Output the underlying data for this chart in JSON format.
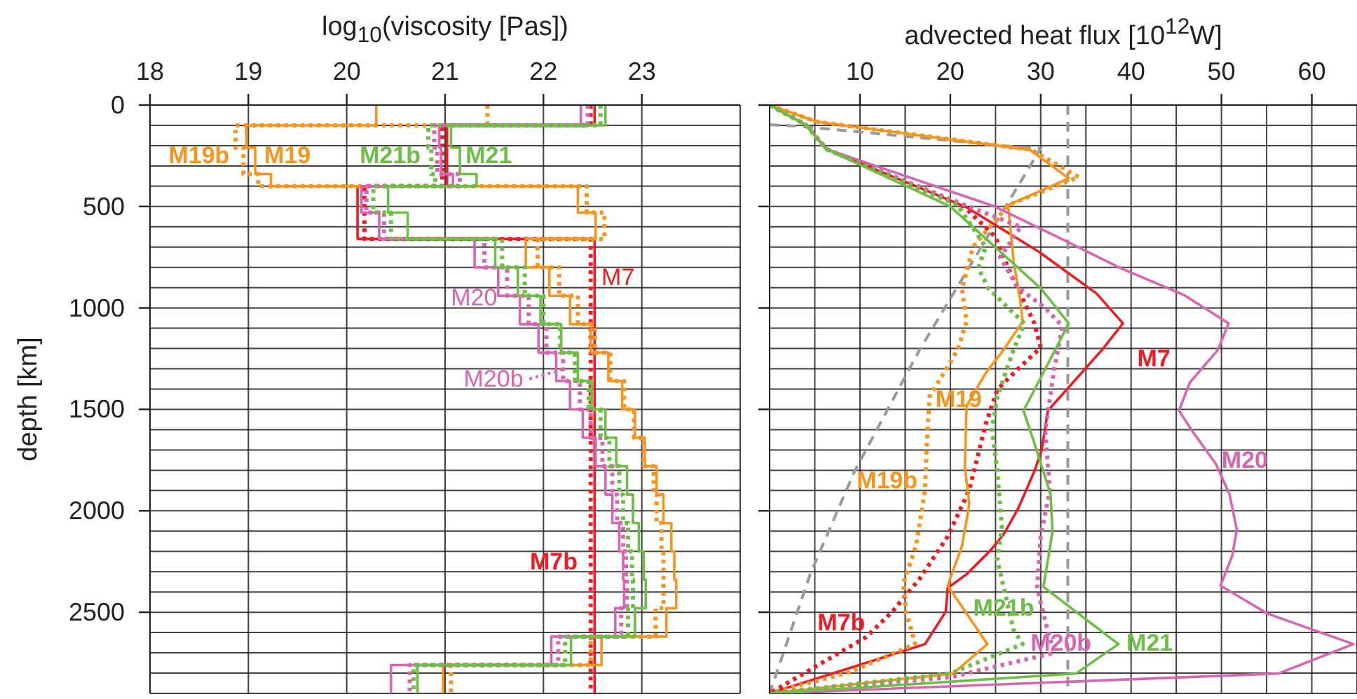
{
  "chart_data": [
    {
      "type": "line",
      "xlabel": "log$_{10}$(viscosity [Pas])",
      "ylabel": "depth [km]",
      "xlim": [
        18,
        24
      ],
      "xticks": [
        18,
        19,
        20,
        21,
        22,
        23,
        {
          "value": 24,
          "label": null
        }
      ],
      "ylim": [
        2900,
        0
      ],
      "yticks": [
        0,
        {
          "value": 100,
          "label": null
        },
        {
          "value": 200,
          "label": null
        },
        {
          "value": 300,
          "label": null
        },
        {
          "value": 400,
          "label": null
        },
        500,
        {
          "value": 600,
          "label": null
        },
        {
          "value": 700,
          "label": null
        },
        {
          "value": 800,
          "label": null
        },
        {
          "value": 900,
          "label": null
        },
        1000,
        {
          "value": 1100,
          "label": null
        },
        {
          "value": 1200,
          "label": null
        },
        {
          "value": 1300,
          "label": null
        },
        {
          "value": 1400,
          "label": null
        },
        1500,
        {
          "value": 1600,
          "label": null
        },
        {
          "value": 1700,
          "label": null
        },
        {
          "value": 1800,
          "label": null
        },
        {
          "value": 1900,
          "label": null
        },
        2000,
        {
          "value": 2100,
          "label": null
        },
        {
          "value": 2200,
          "label": null
        },
        {
          "value": 2300,
          "label": null
        },
        {
          "value": 2400,
          "label": null
        },
        2500,
        {
          "value": 2600,
          "label": null
        },
        {
          "value": 2700,
          "label": null
        },
        {
          "value": 2800,
          "label": null
        },
        {
          "value": 2900,
          "label": null
        }
      ],
      "grid": true,
      "series": [
        {
          "name": "M7",
          "color": "#ed1c24",
          "x": [
            22.52,
            22.52,
            21.02,
            21.02,
            20.11,
            20.11,
            22.52,
            22.52
          ],
          "values": [
            0,
            100,
            100,
            400,
            400,
            660,
            660,
            2900
          ]
        },
        {
          "name": "M7b",
          "color": "#ed1c24",
          "line_style": "dotted",
          "x": [
            22.48,
            22.48,
            20.97,
            20.97,
            20.18,
            20.18,
            22.48,
            22.48
          ],
          "values": [
            0,
            100,
            100,
            400,
            400,
            660,
            660,
            2900
          ]
        },
        {
          "name": "M19",
          "color": "#f7941d",
          "x": [
            20.3,
            20.3,
            18.98,
            18.98,
            19.07,
            19.07,
            19.23,
            19.23,
            22.35,
            22.35,
            22.53,
            22.53,
            21.82,
            21.82,
            22.06,
            22.06,
            22.27,
            22.27,
            22.48,
            22.48,
            22.66,
            22.66,
            22.8,
            22.8,
            22.93,
            22.93,
            23.03,
            23.03,
            23.15,
            23.15,
            23.22,
            23.22,
            23.3,
            23.3,
            23.33,
            23.33,
            23.35,
            23.35,
            23.25,
            23.25,
            22.59,
            22.59,
            20.98,
            20.98
          ],
          "values": [
            0,
            100,
            100,
            210,
            210,
            340,
            340,
            400,
            400,
            530,
            530,
            660,
            660,
            800,
            800,
            940,
            940,
            1080,
            1080,
            1220,
            1220,
            1360,
            1360,
            1500,
            1500,
            1640,
            1640,
            1780,
            1780,
            1920,
            1920,
            2060,
            2060,
            2200,
            2200,
            2340,
            2340,
            2480,
            2480,
            2620,
            2620,
            2760,
            2760,
            2900
          ]
        },
        {
          "name": "M19b",
          "color": "#f7941d",
          "line_style": "dotted",
          "x": [
            21.43,
            21.43,
            18.87,
            18.87,
            18.95,
            18.95,
            19.1,
            19.1,
            22.44,
            22.44,
            22.62,
            22.62,
            21.94,
            21.94,
            22.16,
            22.16,
            22.35,
            22.35,
            22.52,
            22.52,
            22.68,
            22.68,
            22.82,
            22.82,
            22.92,
            22.92,
            23.02,
            23.02,
            23.12,
            23.12,
            23.15,
            23.15,
            23.2,
            23.2,
            23.22,
            23.22,
            23.22,
            23.22,
            23.14,
            23.14,
            22.48,
            22.48,
            21.06,
            21.06
          ],
          "values": [
            0,
            100,
            100,
            210,
            210,
            340,
            340,
            400,
            400,
            530,
            530,
            660,
            660,
            800,
            800,
            940,
            940,
            1080,
            1080,
            1220,
            1220,
            1360,
            1360,
            1500,
            1500,
            1640,
            1640,
            1780,
            1780,
            1920,
            1920,
            2060,
            2060,
            2200,
            2200,
            2340,
            2340,
            2480,
            2480,
            2620,
            2620,
            2760,
            2760,
            2900
          ]
        },
        {
          "name": "M20",
          "color": "#d765b3",
          "x": [
            22.38,
            22.38,
            20.94,
            20.94,
            20.96,
            20.96,
            21.08,
            21.08,
            20.15,
            20.15,
            20.33,
            20.33,
            21.3,
            21.3,
            21.54,
            21.54,
            21.76,
            21.76,
            21.95,
            21.95,
            22.13,
            22.13,
            22.27,
            22.27,
            22.4,
            22.4,
            22.53,
            22.53,
            22.63,
            22.63,
            22.7,
            22.7,
            22.77,
            22.77,
            22.81,
            22.81,
            22.82,
            22.82,
            22.73,
            22.73,
            22.08,
            22.08,
            20.45,
            20.45
          ],
          "values": [
            0,
            100,
            100,
            210,
            210,
            340,
            340,
            400,
            400,
            530,
            530,
            660,
            660,
            800,
            800,
            940,
            940,
            1080,
            1080,
            1220,
            1220,
            1360,
            1360,
            1500,
            1500,
            1640,
            1640,
            1780,
            1780,
            1920,
            1920,
            2060,
            2060,
            2200,
            2200,
            2340,
            2340,
            2480,
            2480,
            2620,
            2620,
            2760,
            2760,
            2900
          ]
        },
        {
          "name": "M20b",
          "color": "#d765b3",
          "line_style": "dotted",
          "x": [
            22.45,
            22.45,
            20.89,
            20.89,
            20.92,
            20.92,
            21.15,
            21.15,
            20.2,
            20.2,
            20.38,
            20.38,
            21.4,
            21.4,
            21.63,
            21.63,
            21.85,
            21.85,
            22.03,
            22.03,
            22.2,
            22.2,
            22.37,
            22.37,
            22.48,
            22.48,
            22.6,
            22.6,
            22.7,
            22.7,
            22.75,
            22.75,
            22.81,
            22.81,
            22.84,
            22.84,
            22.85,
            22.85,
            22.79,
            22.79,
            22.15,
            22.15,
            20.64,
            20.64
          ],
          "values": [
            0,
            100,
            100,
            210,
            210,
            340,
            340,
            400,
            400,
            530,
            530,
            660,
            660,
            800,
            800,
            940,
            940,
            1080,
            1080,
            1220,
            1220,
            1360,
            1360,
            1500,
            1500,
            1640,
            1640,
            1780,
            1780,
            1920,
            1920,
            2060,
            2060,
            2200,
            2200,
            2340,
            2340,
            2480,
            2480,
            2620,
            2620,
            2760,
            2760,
            2900
          ]
        },
        {
          "name": "M21",
          "color": "#6cbe45",
          "x": [
            22.63,
            22.63,
            21.06,
            21.06,
            21.15,
            21.15,
            21.32,
            21.32,
            20.42,
            20.42,
            20.62,
            20.62,
            21.51,
            21.51,
            21.74,
            21.74,
            21.97,
            21.97,
            22.18,
            22.18,
            22.35,
            22.35,
            22.49,
            22.49,
            22.63,
            22.63,
            22.74,
            22.74,
            22.85,
            22.85,
            22.91,
            22.91,
            22.97,
            22.97,
            23.02,
            23.02,
            23.04,
            23.04,
            22.93,
            22.93,
            22.28,
            22.28,
            20.72,
            20.72
          ],
          "values": [
            0,
            100,
            100,
            210,
            210,
            340,
            340,
            400,
            400,
            530,
            530,
            660,
            660,
            800,
            800,
            940,
            940,
            1080,
            1080,
            1220,
            1220,
            1360,
            1360,
            1500,
            1500,
            1640,
            1640,
            1780,
            1780,
            1920,
            1920,
            2060,
            2060,
            2200,
            2200,
            2340,
            2340,
            2480,
            2480,
            2620,
            2620,
            2760,
            2760,
            2900
          ]
        },
        {
          "name": "M21b",
          "color": "#6cbe45",
          "line_style": "dotted",
          "x": [
            22.58,
            22.58,
            20.83,
            20.83,
            20.86,
            20.86,
            20.9,
            20.9,
            20.27,
            20.27,
            20.45,
            20.45,
            21.58,
            21.58,
            21.81,
            21.81,
            22,
            22,
            22.17,
            22.17,
            22.32,
            22.32,
            22.46,
            22.46,
            22.58,
            22.58,
            22.67,
            22.67,
            22.77,
            22.77,
            22.81,
            22.81,
            22.86,
            22.86,
            22.9,
            22.9,
            22.91,
            22.91,
            22.86,
            22.86,
            22.22,
            22.22,
            20.68,
            20.68
          ],
          "values": [
            0,
            100,
            100,
            210,
            210,
            340,
            340,
            400,
            400,
            530,
            530,
            660,
            660,
            800,
            800,
            940,
            940,
            1080,
            1080,
            1220,
            1220,
            1360,
            1360,
            1500,
            1500,
            1640,
            1640,
            1780,
            1780,
            1920,
            1920,
            2060,
            2060,
            2200,
            2200,
            2340,
            2340,
            2480,
            2480,
            2620,
            2620,
            2760,
            2760,
            2900
          ]
        }
      ]
    },
    {
      "type": "line",
      "xlabel": "advected heat flux [10$^{12}$W]",
      "xlim": [
        0,
        65
      ],
      "xticks": [
        {
          "value": 0,
          "label": null
        },
        {
          "value": 5,
          "label": null
        },
        10,
        {
          "value": 15,
          "label": null
        },
        20,
        {
          "value": 25,
          "label": null
        },
        30,
        {
          "value": 35,
          "label": null
        },
        40,
        {
          "value": 45,
          "label": null
        },
        50,
        {
          "value": 55,
          "label": null
        },
        60
      ],
      "ylim": [
        2900,
        0
      ],
      "yticks": [
        0,
        {
          "value": 100,
          "label": null
        },
        {
          "value": 200,
          "label": null
        },
        {
          "value": 300,
          "label": null
        },
        {
          "value": 400,
          "label": null
        },
        500,
        {
          "value": 600,
          "label": null
        },
        {
          "value": 700,
          "label": null
        },
        {
          "value": 800,
          "label": null
        },
        {
          "value": 900,
          "label": null
        },
        1000,
        {
          "value": 1100,
          "label": null
        },
        {
          "value": 1200,
          "label": null
        },
        {
          "value": 1300,
          "label": null
        },
        {
          "value": 1400,
          "label": null
        },
        1500,
        {
          "value": 1600,
          "label": null
        },
        {
          "value": 1700,
          "label": null
        },
        {
          "value": 1800,
          "label": null
        },
        {
          "value": 1900,
          "label": null
        },
        2000,
        {
          "value": 2100,
          "label": null
        },
        {
          "value": 2200,
          "label": null
        },
        {
          "value": 2300,
          "label": null
        },
        {
          "value": 2400,
          "label": null
        },
        2500,
        {
          "value": 2600,
          "label": null
        },
        {
          "value": 2700,
          "label": null
        },
        {
          "value": 2800,
          "label": null
        },
        {
          "value": 2900,
          "label": null
        }
      ],
      "tick_labels": "x",
      "grid": true,
      "ref_lines": [
        {
          "axis": "x",
          "value": 33,
          "color": "#999999",
          "line_style": "dashed"
        }
      ],
      "series": [
        {
          "color": "#999999",
          "line_style": "dashed",
          "x": [
            0,
            3.5,
            27,
            30,
            16.6,
            9.4,
            4.5,
            0
          ],
          "values": [
            97,
            105,
            205,
            213,
            1206,
            1805,
            2311,
            2900
          ]
        },
        {
          "name": "M7",
          "color": "#ed1c24",
          "x": [
            0,
            4,
            6.3,
            21.8,
            29.8,
            36.2,
            39.1,
            36.8,
            30.8,
            30.1,
            29.3,
            27.5,
            25.9,
            24.4,
            21.8,
            19.7,
            19.5,
            17.2,
            0
          ],
          "values": [
            0,
            97,
            217,
            504,
            723,
            930,
            1076,
            1206,
            1506,
            1701,
            1805,
            1989,
            2116,
            2197,
            2312,
            2381,
            2496,
            2657,
            2900
          ]
        },
        {
          "name": "M7b",
          "color": "#ed1c24",
          "line_style": "dotted",
          "x": [
            0,
            4,
            6.3,
            21.5,
            25,
            26.5,
            29.3,
            30,
            27.5,
            25.2,
            23.9,
            22.1,
            19.7,
            16.6,
            13.6,
            10.7,
            0
          ],
          "values": [
            0,
            97,
            217,
            500,
            650,
            815,
            1076,
            1196,
            1300,
            1402,
            1575,
            1897,
            2127,
            2335,
            2496,
            2622,
            2900
          ]
        },
        {
          "name": "M19",
          "color": "#f7941d",
          "x": [
            0,
            5.3,
            28.8,
            33.1,
            26.4,
            27,
            27.7,
            28,
            25.9,
            23.9,
            21.8,
            21.6,
            22.1,
            21.3,
            19.7,
            24.1,
            20.3,
            0
          ],
          "values": [
            0,
            83,
            221,
            361,
            493,
            769,
            953,
            1068,
            1206,
            1322,
            1483,
            1782,
            1966,
            2173,
            2369,
            2657,
            2802,
            2900
          ]
        },
        {
          "name": "M19b",
          "color": "#f7941d",
          "line_style": "dotted",
          "x": [
            0,
            5.3,
            29,
            34.2,
            26.4,
            22.5,
            21.3,
            21.8,
            20.8,
            17.7,
            17.4,
            17.2,
            16.2,
            14.8,
            15.1,
            16.1,
            8.9,
            0
          ],
          "values": [
            0,
            83,
            221,
            355,
            493,
            700,
            907,
            1068,
            1207,
            1437,
            1667,
            1897,
            2173,
            2358,
            2496,
            2657,
            2795,
            2900
          ]
        },
        {
          "name": "M20",
          "color": "#d765b3",
          "x": [
            0,
            4,
            6.3,
            24.9,
            33.1,
            38.8,
            45.8,
            50.8,
            49.6,
            46.5,
            45.3,
            46.8,
            49.4,
            50.9,
            51.7,
            51.2,
            49.9,
            55.1,
            64.6,
            56.3,
            0
          ],
          "values": [
            0,
            97,
            217,
            500,
            677,
            803,
            935,
            1076,
            1207,
            1368,
            1506,
            1609,
            1770,
            1920,
            2093,
            2220,
            2369,
            2507,
            2657,
            2802,
            2900
          ]
        },
        {
          "name": "M20b",
          "color": "#d765b3",
          "line_style": "dotted",
          "x": [
            0,
            4,
            6.3,
            22,
            27.8,
            25.5,
            27.5,
            30.5,
            32.4,
            31.5,
            30.5,
            31,
            30,
            29.6,
            30.6,
            31.5,
            20,
            0
          ],
          "values": [
            0,
            97,
            217,
            500,
            600,
            750,
            900,
            1000,
            1090,
            1300,
            1600,
            1900,
            2127,
            2380,
            2560,
            2700,
            2820,
            2900
          ]
        },
        {
          "name": "M21",
          "color": "#6cbe45",
          "x": [
            0,
            4,
            6.2,
            20,
            30,
            33.1,
            31.6,
            28.1,
            29.3,
            31.1,
            31.3,
            30.3,
            38.6,
            33.9,
            0
          ],
          "values": [
            0,
            97,
            216,
            500,
            903,
            1076,
            1207,
            1506,
            1667,
            1920,
            2104,
            2375,
            2657,
            2802,
            2900
          ]
        },
        {
          "name": "M21b",
          "color": "#6cbe45",
          "line_style": "dotted",
          "x": [
            0,
            4,
            6.2,
            20.8,
            23.9,
            23.1,
            24.2,
            26.4,
            28.2,
            27,
            25.2,
            24.6,
            25.2,
            25.7,
            25.2,
            27,
            28,
            20,
            0
          ],
          "values": [
            0,
            97,
            216,
            493,
            700,
            803,
            903,
            1000,
            1076,
            1206,
            1437,
            1598,
            1805,
            2081,
            2242,
            2588,
            2657,
            2802,
            2900
          ]
        }
      ]
    }
  ]
}
